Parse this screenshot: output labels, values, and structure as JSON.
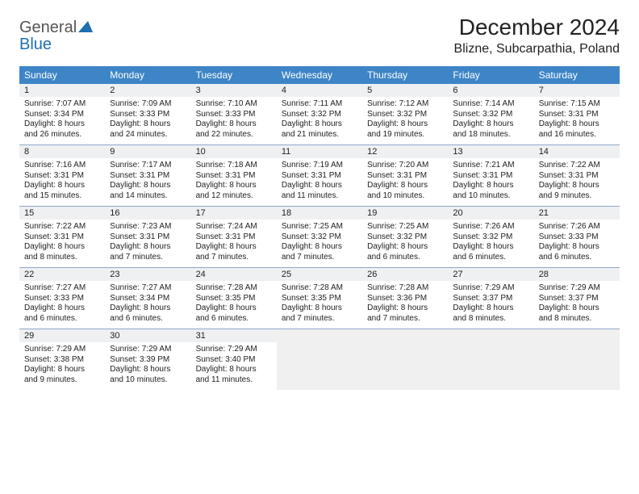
{
  "logo": {
    "general": "General",
    "blue": "Blue"
  },
  "title": "December 2024",
  "location": "Blizne, Subcarpathia, Poland",
  "colors": {
    "header_bg": "#3d85c6",
    "row_divider": "#8fa8c9",
    "daynum_bg": "#eef0f2",
    "blank_bg": "#f0f0f0",
    "text": "#222222",
    "logo_general": "#555555",
    "logo_blue": "#1f6fb2"
  },
  "weekdays": [
    "Sunday",
    "Monday",
    "Tuesday",
    "Wednesday",
    "Thursday",
    "Friday",
    "Saturday"
  ],
  "days": [
    {
      "n": 1,
      "sr": "7:07 AM",
      "ss": "3:34 PM",
      "dh": 8,
      "dm": 26
    },
    {
      "n": 2,
      "sr": "7:09 AM",
      "ss": "3:33 PM",
      "dh": 8,
      "dm": 24
    },
    {
      "n": 3,
      "sr": "7:10 AM",
      "ss": "3:33 PM",
      "dh": 8,
      "dm": 22
    },
    {
      "n": 4,
      "sr": "7:11 AM",
      "ss": "3:32 PM",
      "dh": 8,
      "dm": 21
    },
    {
      "n": 5,
      "sr": "7:12 AM",
      "ss": "3:32 PM",
      "dh": 8,
      "dm": 19
    },
    {
      "n": 6,
      "sr": "7:14 AM",
      "ss": "3:32 PM",
      "dh": 8,
      "dm": 18
    },
    {
      "n": 7,
      "sr": "7:15 AM",
      "ss": "3:31 PM",
      "dh": 8,
      "dm": 16
    },
    {
      "n": 8,
      "sr": "7:16 AM",
      "ss": "3:31 PM",
      "dh": 8,
      "dm": 15
    },
    {
      "n": 9,
      "sr": "7:17 AM",
      "ss": "3:31 PM",
      "dh": 8,
      "dm": 14
    },
    {
      "n": 10,
      "sr": "7:18 AM",
      "ss": "3:31 PM",
      "dh": 8,
      "dm": 12
    },
    {
      "n": 11,
      "sr": "7:19 AM",
      "ss": "3:31 PM",
      "dh": 8,
      "dm": 11
    },
    {
      "n": 12,
      "sr": "7:20 AM",
      "ss": "3:31 PM",
      "dh": 8,
      "dm": 10
    },
    {
      "n": 13,
      "sr": "7:21 AM",
      "ss": "3:31 PM",
      "dh": 8,
      "dm": 10
    },
    {
      "n": 14,
      "sr": "7:22 AM",
      "ss": "3:31 PM",
      "dh": 8,
      "dm": 9
    },
    {
      "n": 15,
      "sr": "7:22 AM",
      "ss": "3:31 PM",
      "dh": 8,
      "dm": 8
    },
    {
      "n": 16,
      "sr": "7:23 AM",
      "ss": "3:31 PM",
      "dh": 8,
      "dm": 7
    },
    {
      "n": 17,
      "sr": "7:24 AM",
      "ss": "3:31 PM",
      "dh": 8,
      "dm": 7
    },
    {
      "n": 18,
      "sr": "7:25 AM",
      "ss": "3:32 PM",
      "dh": 8,
      "dm": 7
    },
    {
      "n": 19,
      "sr": "7:25 AM",
      "ss": "3:32 PM",
      "dh": 8,
      "dm": 6
    },
    {
      "n": 20,
      "sr": "7:26 AM",
      "ss": "3:32 PM",
      "dh": 8,
      "dm": 6
    },
    {
      "n": 21,
      "sr": "7:26 AM",
      "ss": "3:33 PM",
      "dh": 8,
      "dm": 6
    },
    {
      "n": 22,
      "sr": "7:27 AM",
      "ss": "3:33 PM",
      "dh": 8,
      "dm": 6
    },
    {
      "n": 23,
      "sr": "7:27 AM",
      "ss": "3:34 PM",
      "dh": 8,
      "dm": 6
    },
    {
      "n": 24,
      "sr": "7:28 AM",
      "ss": "3:35 PM",
      "dh": 8,
      "dm": 6
    },
    {
      "n": 25,
      "sr": "7:28 AM",
      "ss": "3:35 PM",
      "dh": 8,
      "dm": 7
    },
    {
      "n": 26,
      "sr": "7:28 AM",
      "ss": "3:36 PM",
      "dh": 8,
      "dm": 7
    },
    {
      "n": 27,
      "sr": "7:29 AM",
      "ss": "3:37 PM",
      "dh": 8,
      "dm": 8
    },
    {
      "n": 28,
      "sr": "7:29 AM",
      "ss": "3:37 PM",
      "dh": 8,
      "dm": 8
    },
    {
      "n": 29,
      "sr": "7:29 AM",
      "ss": "3:38 PM",
      "dh": 8,
      "dm": 9
    },
    {
      "n": 30,
      "sr": "7:29 AM",
      "ss": "3:39 PM",
      "dh": 8,
      "dm": 10
    },
    {
      "n": 31,
      "sr": "7:29 AM",
      "ss": "3:40 PM",
      "dh": 8,
      "dm": 11
    }
  ],
  "labels": {
    "sunrise": "Sunrise:",
    "sunset": "Sunset:",
    "daylight_prefix": "Daylight:",
    "hours_word": "hours",
    "and_word": "and",
    "minutes_word": "minutes."
  },
  "layout": {
    "start_weekday": 0,
    "cols": 7
  }
}
